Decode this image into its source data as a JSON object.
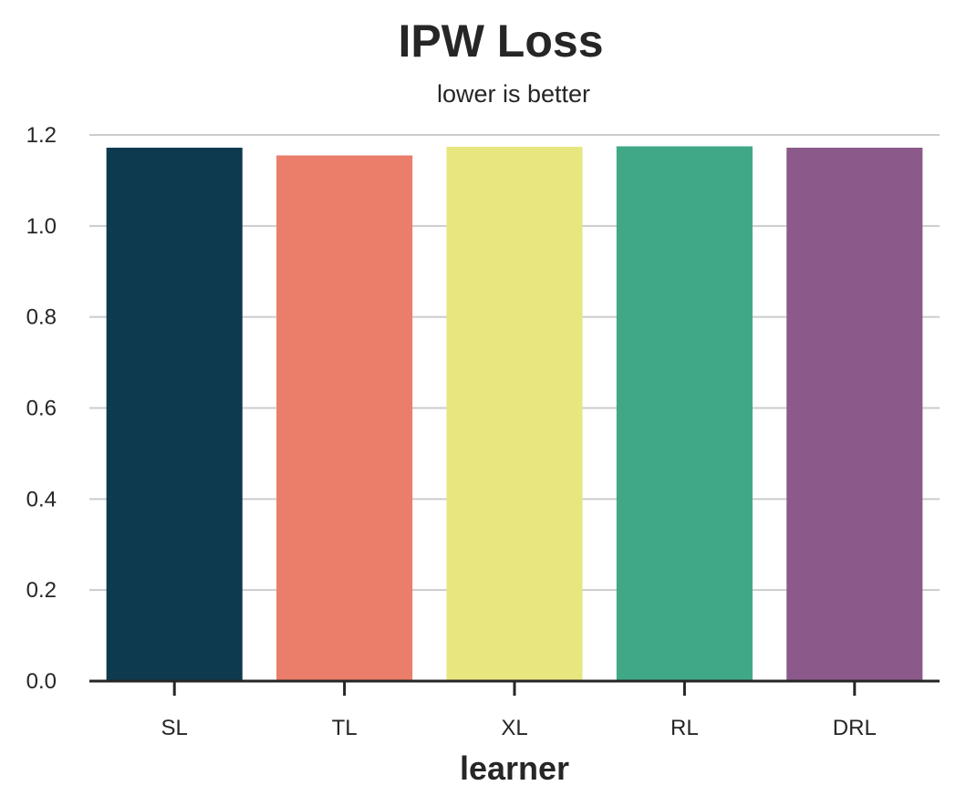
{
  "chart_data": {
    "type": "bar",
    "title": "IPW Loss",
    "subtitle": "lower is better",
    "xlabel": "learner",
    "ylabel": "",
    "categories": [
      "SL",
      "TL",
      "XL",
      "RL",
      "DRL"
    ],
    "values": [
      1.172,
      1.155,
      1.174,
      1.175,
      1.172
    ],
    "colors": [
      "#0e3a4f",
      "#ea7e6b",
      "#e8e67f",
      "#40a886",
      "#8b5a8b"
    ],
    "ylim": [
      0,
      1.2
    ],
    "yticks": [
      "0.0",
      "0.2",
      "0.4",
      "0.6",
      "0.8",
      "1.0",
      "1.2"
    ],
    "grid": "y"
  }
}
